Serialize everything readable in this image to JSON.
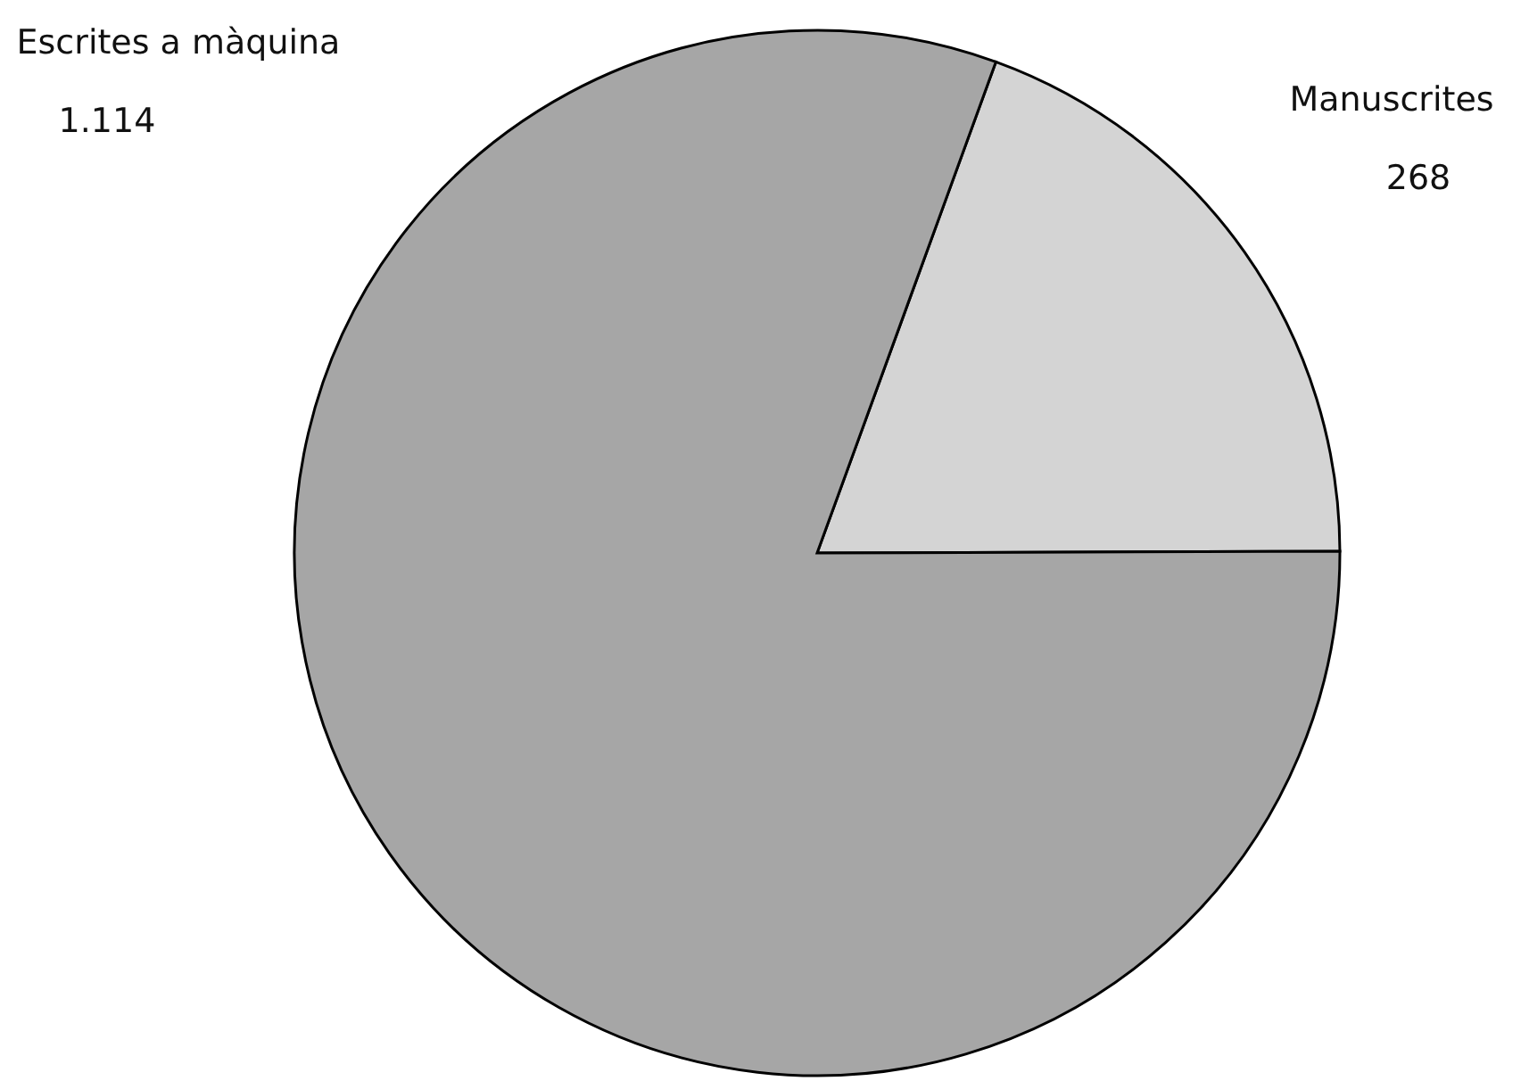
{
  "chart_data": {
    "type": "pie",
    "categories": [
      "Manuscrites",
      "Escrites a màquina"
    ],
    "values": [
      268,
      1114
    ],
    "value_labels": [
      "268",
      "1.114"
    ],
    "colors": [
      "#d4d4d4",
      "#a6a6a6"
    ]
  }
}
